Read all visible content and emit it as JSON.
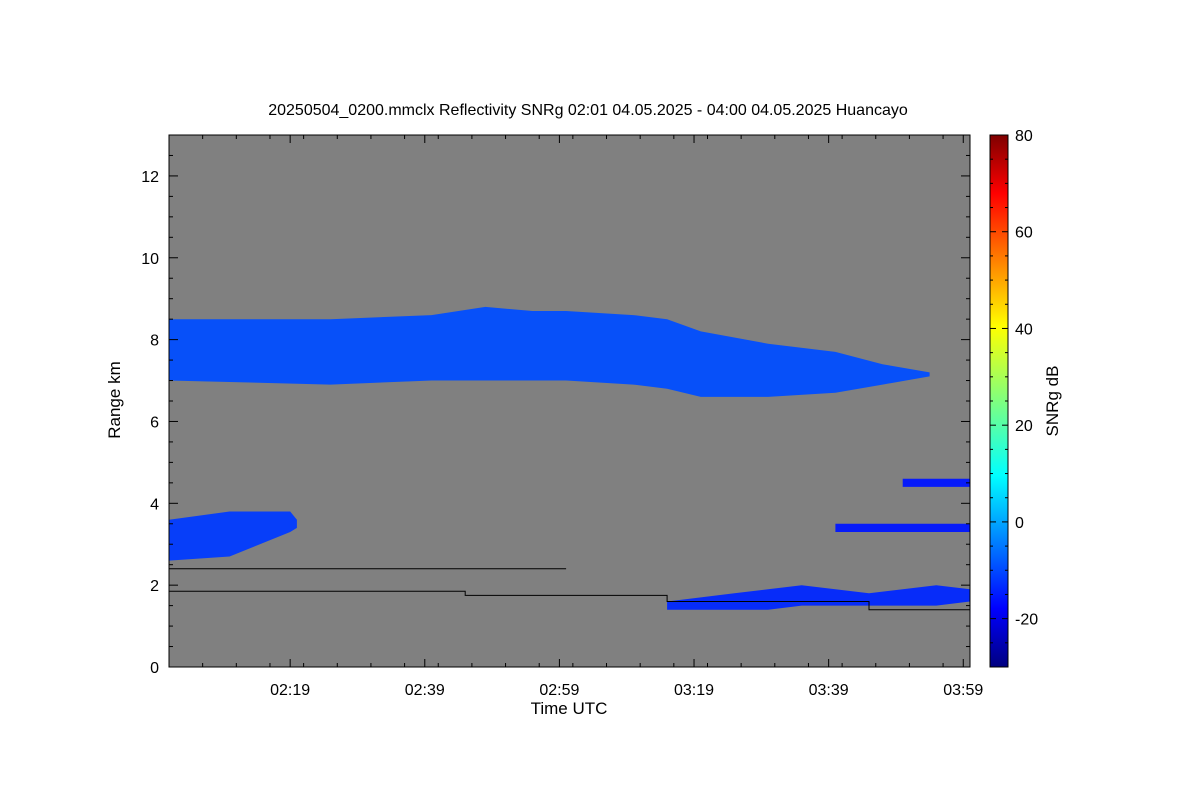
{
  "chart_data": {
    "type": "heatmap",
    "title": "20250504_0200.mmclx Reflectivity SNRg   02:01 04.05.2025 - 04:00 04.05.2025 Huancayo",
    "xlabel": "Time UTC",
    "ylabel": "Range km",
    "x_unit": "minutes after 02:00 UTC",
    "x_range": [
      1,
      120
    ],
    "x_ticks": [
      {
        "value": 19,
        "label": "02:19"
      },
      {
        "value": 39,
        "label": "02:39"
      },
      {
        "value": 59,
        "label": "02:59"
      },
      {
        "value": 79,
        "label": "03:19"
      },
      {
        "value": 99,
        "label": "03:39"
      },
      {
        "value": 119,
        "label": "03:59"
      }
    ],
    "y_range": [
      0,
      13
    ],
    "y_ticks": [
      {
        "value": 0,
        "label": "0"
      },
      {
        "value": 2,
        "label": "2"
      },
      {
        "value": 4,
        "label": "4"
      },
      {
        "value": 6,
        "label": "6"
      },
      {
        "value": 8,
        "label": "8"
      },
      {
        "value": 10,
        "label": "10"
      },
      {
        "value": 12,
        "label": "12"
      }
    ],
    "colorbar": {
      "label": "SNRg dB",
      "range": [
        -30,
        80
      ],
      "ticks": [
        {
          "value": -20,
          "label": "-20"
        },
        {
          "value": 0,
          "label": "0"
        },
        {
          "value": 20,
          "label": "20"
        },
        {
          "value": 40,
          "label": "40"
        },
        {
          "value": 60,
          "label": "60"
        },
        {
          "value": 80,
          "label": "80"
        }
      ],
      "colormap": "jet",
      "no_signal_color": "#808080"
    },
    "regions": [
      {
        "name": "upper cloud layer",
        "x": [
          1,
          25,
          40,
          48,
          55,
          60,
          70,
          75,
          80,
          90,
          100,
          107,
          114
        ],
        "top": [
          8.5,
          8.5,
          8.6,
          8.8,
          8.7,
          8.7,
          8.6,
          8.5,
          8.2,
          7.9,
          7.7,
          7.4,
          7.2
        ],
        "bottom": [
          7.0,
          6.9,
          7.0,
          7.0,
          7.0,
          7.0,
          6.9,
          6.8,
          6.6,
          6.6,
          6.7,
          6.9,
          7.1
        ],
        "snr": -8
      },
      {
        "name": "lower cloud left",
        "x": [
          1,
          10,
          19,
          20
        ],
        "top": [
          3.6,
          3.8,
          3.8,
          3.6
        ],
        "bottom": [
          2.6,
          2.7,
          3.3,
          3.4
        ],
        "snr": -10
      },
      {
        "name": "low layer right",
        "x": [
          75,
          80,
          85,
          90,
          95,
          100,
          105,
          110,
          115,
          120
        ],
        "top": [
          1.6,
          1.7,
          1.8,
          1.9,
          2.0,
          1.9,
          1.8,
          1.9,
          2.0,
          1.9
        ],
        "bottom": [
          1.4,
          1.4,
          1.4,
          1.4,
          1.5,
          1.5,
          1.5,
          1.5,
          1.5,
          1.6
        ],
        "snr": -12
      },
      {
        "name": "thin layer 3.4 km",
        "x": [
          100,
          120
        ],
        "top": [
          3.5,
          3.5
        ],
        "bottom": [
          3.3,
          3.3
        ],
        "snr": -14
      },
      {
        "name": "thin layer 4.5 km",
        "x": [
          110,
          120
        ],
        "top": [
          4.6,
          4.6
        ],
        "bottom": [
          4.4,
          4.4
        ],
        "snr": -14
      }
    ],
    "lines": [
      {
        "name": "upper step line",
        "x": [
          1,
          60
        ],
        "y": [
          2.4,
          2.4
        ]
      },
      {
        "name": "lower step line",
        "x": [
          1,
          45,
          45,
          75,
          75,
          105,
          105,
          120
        ],
        "y": [
          1.85,
          1.85,
          1.75,
          1.75,
          1.6,
          1.6,
          1.4,
          1.4
        ]
      }
    ],
    "grid": false,
    "legend": "colorbar-right"
  }
}
